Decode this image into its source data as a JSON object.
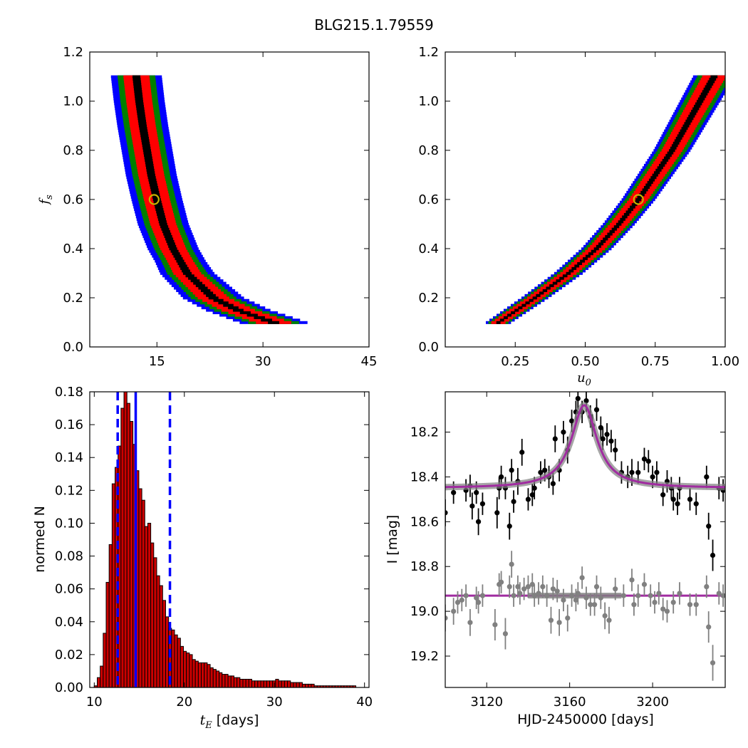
{
  "figure": {
    "title": "BLG215.1.79559",
    "colors": {
      "level1": "#000000",
      "level2": "#ff0000",
      "level3": "#007f00",
      "level4": "#0000ff",
      "hist_fill": "#cc0000",
      "vline": "#0000ff",
      "model": "#a02ca0",
      "data_black": "#000000",
      "data_gray": "#808080",
      "marker": "#c8b400"
    }
  },
  "chart_data": [
    {
      "id": "fs_vs_tE",
      "type": "heatmap",
      "title": "",
      "xlabel": "",
      "ylabel_main": "f",
      "ylabel_sub": "s",
      "xlim": [
        5.5,
        45
      ],
      "ylim": [
        0,
        1.2
      ],
      "xticks": [
        "15",
        "30",
        "45"
      ],
      "yticks": [
        "0.0",
        "0.2",
        "0.4",
        "0.6",
        "0.8",
        "1.0",
        "1.2"
      ],
      "levels": [
        "black",
        "red",
        "green",
        "blue"
      ],
      "ridge": [
        {
          "y": 1.1,
          "x": 12.1
        },
        {
          "y": 1.0,
          "x": 12.5
        },
        {
          "y": 0.9,
          "x": 13.0
        },
        {
          "y": 0.8,
          "x": 13.6
        },
        {
          "y": 0.7,
          "x": 14.2
        },
        {
          "y": 0.6,
          "x": 15.0
        },
        {
          "y": 0.5,
          "x": 15.9
        },
        {
          "y": 0.4,
          "x": 17.3
        },
        {
          "y": 0.3,
          "x": 19.3
        },
        {
          "y": 0.2,
          "x": 23.0
        },
        {
          "y": 0.15,
          "x": 26.5
        },
        {
          "y": 0.1,
          "x": 31.5
        }
      ],
      "best_fit": {
        "x": 14.6,
        "y": 0.6
      }
    },
    {
      "id": "fs_vs_u0",
      "type": "heatmap",
      "title": "",
      "xlabel_main": "u",
      "xlabel_sub": "0",
      "ylabel": "",
      "xlim": [
        0.0,
        1.0
      ],
      "ylim": [
        0,
        1.2
      ],
      "xticks": [
        "0.25",
        "0.50",
        "0.75",
        "1.00"
      ],
      "yticks": [
        "0.0",
        "0.2",
        "0.4",
        "0.6",
        "0.8",
        "1.0",
        "1.2"
      ],
      "levels": [
        "black",
        "red",
        "green",
        "blue"
      ],
      "ridge": [
        {
          "y": 0.1,
          "x": 0.19
        },
        {
          "y": 0.2,
          "x": 0.32
        },
        {
          "y": 0.3,
          "x": 0.44
        },
        {
          "y": 0.4,
          "x": 0.54
        },
        {
          "y": 0.5,
          "x": 0.62
        },
        {
          "y": 0.6,
          "x": 0.69
        },
        {
          "y": 0.7,
          "x": 0.75
        },
        {
          "y": 0.8,
          "x": 0.81
        },
        {
          "y": 0.9,
          "x": 0.86
        },
        {
          "y": 1.0,
          "x": 0.91
        },
        {
          "y": 1.1,
          "x": 0.96
        }
      ],
      "best_fit": {
        "x": 0.69,
        "y": 0.6
      }
    },
    {
      "id": "tE_histogram",
      "type": "bar",
      "title": "",
      "xlabel_main": "t",
      "xlabel_sub": "E",
      "xlabel_unit": "[days]",
      "ylabel": "normed N",
      "xlim": [
        9.5,
        40.5
      ],
      "ylim": [
        0,
        0.18
      ],
      "xticks": [
        "10",
        "20",
        "30",
        "40"
      ],
      "yticks": [
        "0.00",
        "0.02",
        "0.04",
        "0.06",
        "0.08",
        "0.10",
        "0.12",
        "0.14",
        "0.16",
        "0.18"
      ],
      "bin_start": 10.0,
      "bin_width": 0.33,
      "values": [
        0.001,
        0.006,
        0.013,
        0.033,
        0.064,
        0.087,
        0.124,
        0.134,
        0.147,
        0.17,
        0.185,
        0.173,
        0.162,
        0.148,
        0.132,
        0.121,
        0.114,
        0.098,
        0.1,
        0.088,
        0.079,
        0.068,
        0.062,
        0.053,
        0.043,
        0.036,
        0.035,
        0.032,
        0.03,
        0.025,
        0.022,
        0.021,
        0.02,
        0.017,
        0.016,
        0.015,
        0.015,
        0.015,
        0.014,
        0.012,
        0.011,
        0.01,
        0.009,
        0.008,
        0.008,
        0.007,
        0.007,
        0.006,
        0.006,
        0.005,
        0.005,
        0.005,
        0.005,
        0.004,
        0.004,
        0.004,
        0.004,
        0.004,
        0.004,
        0.004,
        0.004,
        0.005,
        0.004,
        0.004,
        0.004,
        0.004,
        0.003,
        0.003,
        0.003,
        0.003,
        0.002,
        0.002,
        0.002,
        0.002,
        0.001,
        0.001,
        0.001,
        0.001,
        0.001,
        0.001,
        0.001,
        0.001,
        0.001,
        0.001,
        0.001,
        0.001,
        0.001,
        0.001
      ],
      "vlines": [
        {
          "x": 12.6,
          "style": "dashed"
        },
        {
          "x": 14.6,
          "style": "solid"
        },
        {
          "x": 18.4,
          "style": "dashed"
        }
      ]
    },
    {
      "id": "light_curve",
      "type": "scatter",
      "title": "",
      "xlabel": "HJD-2450000 [days]",
      "ylabel": "I [mag]",
      "xlim": [
        3100,
        3235
      ],
      "ylim": [
        19.34,
        18.02
      ],
      "inverted_y": true,
      "xticks": [
        "3120",
        "3160",
        "3200"
      ],
      "yticks": [
        "18.2",
        "18.4",
        "18.6",
        "18.8",
        "19.0",
        "19.2"
      ],
      "model": {
        "baseline": 18.45,
        "peak_mag": 18.08,
        "t0": 3167,
        "tE": 7.5
      },
      "residual_model": {
        "level": 18.93
      },
      "points_black": [
        [
          3100,
          18.56,
          0.06
        ],
        [
          3104,
          18.47,
          0.05
        ],
        [
          3110,
          18.46,
          0.05
        ],
        [
          3112,
          18.44,
          0.05
        ],
        [
          3113,
          18.53,
          0.06
        ],
        [
          3115,
          18.47,
          0.05
        ],
        [
          3116,
          18.6,
          0.06
        ],
        [
          3118,
          18.52,
          0.05
        ],
        [
          3125,
          18.56,
          0.07
        ],
        [
          3126,
          18.45,
          0.05
        ],
        [
          3127,
          18.4,
          0.05
        ],
        [
          3129,
          18.45,
          0.05
        ],
        [
          3131,
          18.62,
          0.06
        ],
        [
          3132,
          18.37,
          0.05
        ],
        [
          3133,
          18.51,
          0.05
        ],
        [
          3135,
          18.42,
          0.06
        ],
        [
          3137,
          18.29,
          0.06
        ],
        [
          3140,
          18.5,
          0.05
        ],
        [
          3142,
          18.48,
          0.05
        ],
        [
          3143,
          18.45,
          0.05
        ],
        [
          3146,
          18.38,
          0.05
        ],
        [
          3148,
          18.37,
          0.05
        ],
        [
          3150,
          18.4,
          0.05
        ],
        [
          3152,
          18.43,
          0.05
        ],
        [
          3153,
          18.23,
          0.06
        ],
        [
          3155,
          18.37,
          0.05
        ],
        [
          3157,
          18.2,
          0.05
        ],
        [
          3159,
          18.28,
          0.06
        ],
        [
          3161,
          18.15,
          0.05
        ],
        [
          3163,
          18.11,
          0.05
        ],
        [
          3164,
          18.05,
          0.05
        ],
        [
          3166,
          18.11,
          0.05
        ],
        [
          3168,
          18.06,
          0.05
        ],
        [
          3170,
          18.13,
          0.05
        ],
        [
          3171,
          18.17,
          0.05
        ],
        [
          3173,
          18.1,
          0.05
        ],
        [
          3175,
          18.18,
          0.05
        ],
        [
          3176,
          18.23,
          0.05
        ],
        [
          3178,
          18.21,
          0.05
        ],
        [
          3180,
          18.24,
          0.05
        ],
        [
          3182,
          18.28,
          0.05
        ],
        [
          3185,
          18.38,
          0.05
        ],
        [
          3188,
          18.4,
          0.05
        ],
        [
          3190,
          18.38,
          0.06
        ],
        [
          3193,
          18.38,
          0.05
        ],
        [
          3196,
          18.32,
          0.05
        ],
        [
          3198,
          18.33,
          0.05
        ],
        [
          3200,
          18.4,
          0.05
        ],
        [
          3202,
          18.38,
          0.05
        ],
        [
          3205,
          18.48,
          0.05
        ],
        [
          3207,
          18.42,
          0.05
        ],
        [
          3209,
          18.45,
          0.05
        ],
        [
          3210,
          18.5,
          0.05
        ],
        [
          3212,
          18.52,
          0.05
        ],
        [
          3213,
          18.45,
          0.05
        ],
        [
          3218,
          18.5,
          0.05
        ],
        [
          3221,
          18.52,
          0.05
        ],
        [
          3226,
          18.4,
          0.05
        ],
        [
          3227,
          18.62,
          0.06
        ],
        [
          3229,
          18.75,
          0.07
        ],
        [
          3232,
          18.45,
          0.05
        ],
        [
          3234,
          18.46,
          0.05
        ]
      ],
      "points_gray": [
        [
          3100,
          19.03,
          0.06
        ],
        [
          3104,
          19.0,
          0.06
        ],
        [
          3106,
          18.96,
          0.05
        ],
        [
          3108,
          18.95,
          0.05
        ],
        [
          3110,
          18.93,
          0.05
        ],
        [
          3112,
          19.05,
          0.06
        ],
        [
          3115,
          18.94,
          0.05
        ],
        [
          3116,
          18.96,
          0.05
        ],
        [
          3118,
          18.93,
          0.05
        ],
        [
          3124,
          19.06,
          0.07
        ],
        [
          3126,
          18.88,
          0.05
        ],
        [
          3127,
          18.87,
          0.05
        ],
        [
          3129,
          19.1,
          0.07
        ],
        [
          3131,
          18.89,
          0.05
        ],
        [
          3132,
          18.79,
          0.06
        ],
        [
          3133,
          18.93,
          0.05
        ],
        [
          3135,
          18.89,
          0.05
        ],
        [
          3136,
          18.92,
          0.05
        ],
        [
          3138,
          18.9,
          0.05
        ],
        [
          3140,
          18.89,
          0.05
        ],
        [
          3142,
          18.88,
          0.05
        ],
        [
          3143,
          18.93,
          0.05
        ],
        [
          3145,
          18.92,
          0.05
        ],
        [
          3147,
          18.89,
          0.05
        ],
        [
          3149,
          18.93,
          0.05
        ],
        [
          3151,
          19.04,
          0.06
        ],
        [
          3152,
          18.9,
          0.05
        ],
        [
          3154,
          18.91,
          0.05
        ],
        [
          3155,
          19.05,
          0.06
        ],
        [
          3157,
          18.95,
          0.05
        ],
        [
          3159,
          19.03,
          0.06
        ],
        [
          3161,
          18.93,
          0.05
        ],
        [
          3163,
          18.95,
          0.05
        ],
        [
          3164,
          18.92,
          0.05
        ],
        [
          3166,
          18.85,
          0.05
        ],
        [
          3168,
          18.94,
          0.05
        ],
        [
          3170,
          18.97,
          0.05
        ],
        [
          3172,
          18.97,
          0.05
        ],
        [
          3173,
          18.89,
          0.05
        ],
        [
          3175,
          18.94,
          0.05
        ],
        [
          3177,
          19.02,
          0.06
        ],
        [
          3179,
          19.04,
          0.06
        ],
        [
          3182,
          18.9,
          0.05
        ],
        [
          3186,
          18.93,
          0.05
        ],
        [
          3190,
          18.86,
          0.05
        ],
        [
          3191,
          18.97,
          0.05
        ],
        [
          3193,
          18.93,
          0.05
        ],
        [
          3196,
          18.88,
          0.05
        ],
        [
          3199,
          18.93,
          0.05
        ],
        [
          3201,
          18.96,
          0.05
        ],
        [
          3203,
          18.92,
          0.05
        ],
        [
          3205,
          18.99,
          0.05
        ],
        [
          3207,
          19.0,
          0.05
        ],
        [
          3210,
          18.96,
          0.05
        ],
        [
          3213,
          18.92,
          0.05
        ],
        [
          3218,
          18.97,
          0.05
        ],
        [
          3221,
          18.97,
          0.05
        ],
        [
          3226,
          18.89,
          0.05
        ],
        [
          3227,
          19.07,
          0.07
        ],
        [
          3229,
          19.23,
          0.08
        ],
        [
          3232,
          18.92,
          0.05
        ],
        [
          3234,
          18.93,
          0.05
        ]
      ]
    }
  ]
}
